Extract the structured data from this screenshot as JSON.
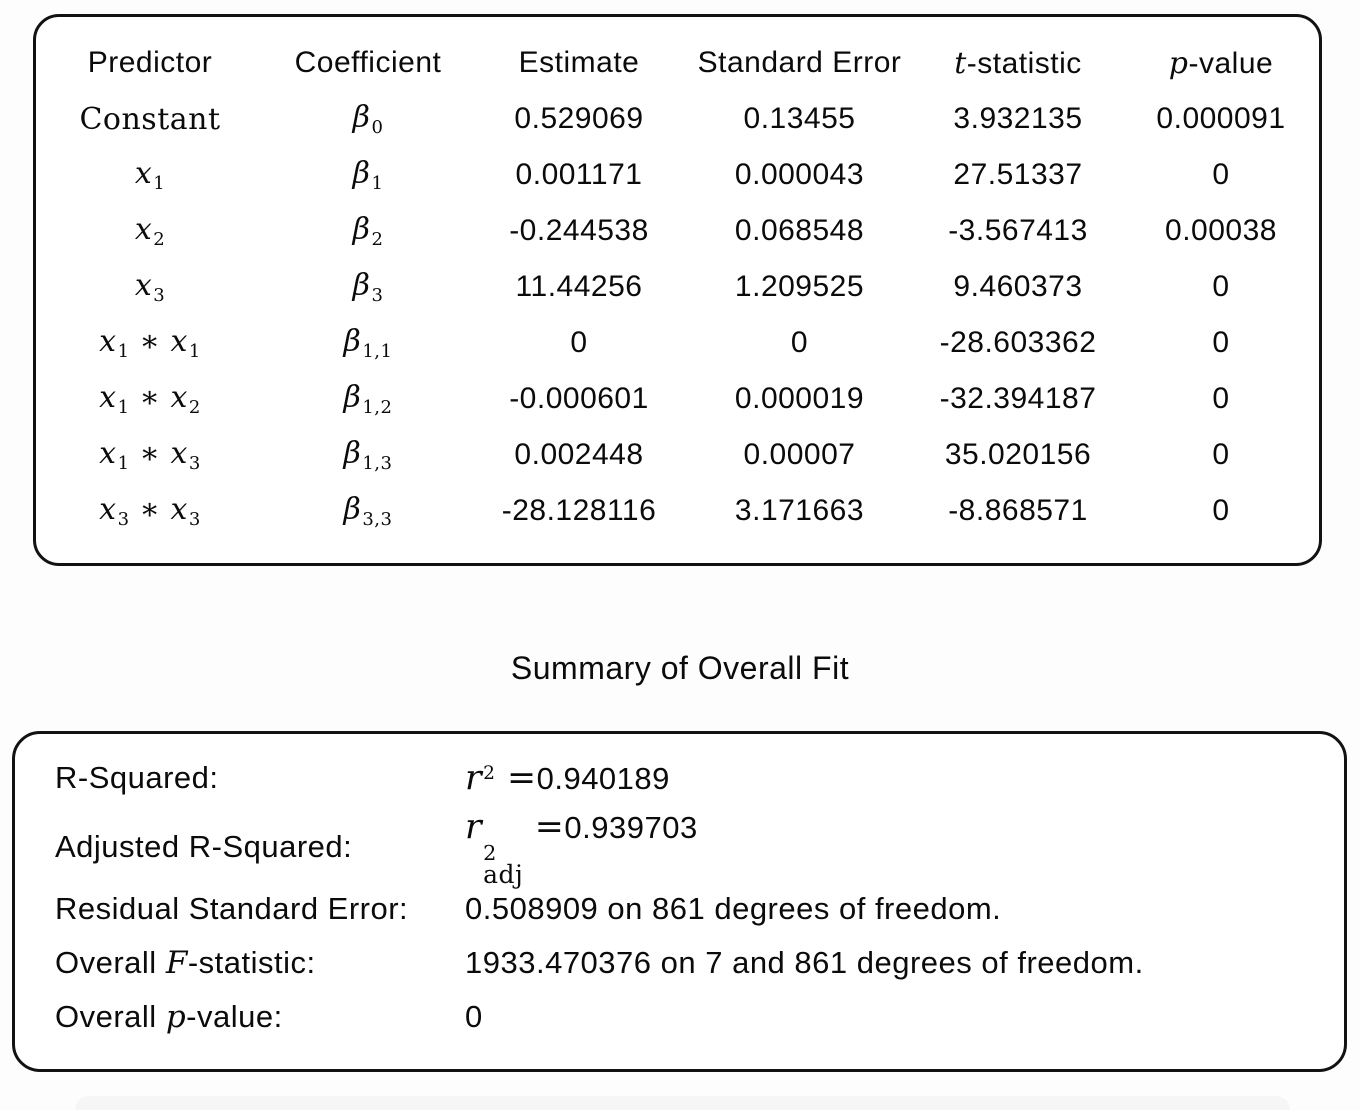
{
  "coef_table": {
    "headers": [
      [
        {
          "t": "Predictor",
          "s": "sans"
        }
      ],
      [
        {
          "t": "Coefficient",
          "s": "sans"
        }
      ],
      [
        {
          "t": "Estimate",
          "s": "sans"
        }
      ],
      [
        {
          "t": "Standard Error",
          "s": "sans"
        }
      ],
      [
        {
          "t": "t",
          "s": "it"
        },
        {
          "t": "-statistic",
          "s": "sans"
        }
      ],
      [
        {
          "t": "p",
          "s": "it"
        },
        {
          "t": "-value",
          "s": "sans"
        }
      ]
    ],
    "rows": [
      {
        "predictor": [
          {
            "t": "Constant",
            "s": "rm"
          }
        ],
        "coefficient": [
          {
            "t": "β",
            "s": "it"
          },
          {
            "t": "0",
            "s": "sub"
          }
        ],
        "estimate": "0.529069",
        "standard_error": "0.13455",
        "t_statistic": "3.932135",
        "p_value": "0.000091"
      },
      {
        "predictor": [
          {
            "t": "x",
            "s": "it"
          },
          {
            "t": "1",
            "s": "sub"
          }
        ],
        "coefficient": [
          {
            "t": "β",
            "s": "it"
          },
          {
            "t": "1",
            "s": "sub"
          }
        ],
        "estimate": "0.001171",
        "standard_error": "0.000043",
        "t_statistic": "27.51337",
        "p_value": "0"
      },
      {
        "predictor": [
          {
            "t": "x",
            "s": "it"
          },
          {
            "t": "2",
            "s": "sub"
          }
        ],
        "coefficient": [
          {
            "t": "β",
            "s": "it"
          },
          {
            "t": "2",
            "s": "sub"
          }
        ],
        "estimate": "-0.244538",
        "standard_error": "0.068548",
        "t_statistic": "-3.567413",
        "p_value": "0.00038"
      },
      {
        "predictor": [
          {
            "t": "x",
            "s": "it"
          },
          {
            "t": "3",
            "s": "sub"
          }
        ],
        "coefficient": [
          {
            "t": "β",
            "s": "it"
          },
          {
            "t": "3",
            "s": "sub"
          }
        ],
        "estimate": "11.44256",
        "standard_error": "1.209525",
        "t_statistic": "9.460373",
        "p_value": "0"
      },
      {
        "predictor": [
          {
            "t": "x",
            "s": "it"
          },
          {
            "t": "1",
            "s": "sub"
          },
          {
            "t": " ∗ ",
            "s": "rm"
          },
          {
            "t": "x",
            "s": "it"
          },
          {
            "t": "1",
            "s": "sub"
          }
        ],
        "coefficient": [
          {
            "t": "β",
            "s": "it"
          },
          {
            "t": "1,1",
            "s": "sub"
          }
        ],
        "estimate": "0",
        "standard_error": "0",
        "t_statistic": "-28.603362",
        "p_value": "0"
      },
      {
        "predictor": [
          {
            "t": "x",
            "s": "it"
          },
          {
            "t": "1",
            "s": "sub"
          },
          {
            "t": " ∗ ",
            "s": "rm"
          },
          {
            "t": "x",
            "s": "it"
          },
          {
            "t": "2",
            "s": "sub"
          }
        ],
        "coefficient": [
          {
            "t": "β",
            "s": "it"
          },
          {
            "t": "1,2",
            "s": "sub"
          }
        ],
        "estimate": "-0.000601",
        "standard_error": "0.000019",
        "t_statistic": "-32.394187",
        "p_value": "0"
      },
      {
        "predictor": [
          {
            "t": "x",
            "s": "it"
          },
          {
            "t": "1",
            "s": "sub"
          },
          {
            "t": " ∗ ",
            "s": "rm"
          },
          {
            "t": "x",
            "s": "it"
          },
          {
            "t": "3",
            "s": "sub"
          }
        ],
        "coefficient": [
          {
            "t": "β",
            "s": "it"
          },
          {
            "t": "1,3",
            "s": "sub"
          }
        ],
        "estimate": "0.002448",
        "standard_error": "0.00007",
        "t_statistic": "35.020156",
        "p_value": "0"
      },
      {
        "predictor": [
          {
            "t": "x",
            "s": "it"
          },
          {
            "t": "3",
            "s": "sub"
          },
          {
            "t": " ∗ ",
            "s": "rm"
          },
          {
            "t": "x",
            "s": "it"
          },
          {
            "t": "3",
            "s": "sub"
          }
        ],
        "coefficient": [
          {
            "t": "β",
            "s": "it"
          },
          {
            "t": "3,3",
            "s": "sub"
          }
        ],
        "estimate": "-28.128116",
        "standard_error": "3.171663",
        "t_statistic": "-8.868571",
        "p_value": "0"
      }
    ]
  },
  "summary": {
    "title": "Summary of Overall Fit",
    "rows": [
      {
        "label": [
          {
            "t": "R-Squared:",
            "s": "sans"
          }
        ],
        "value": [
          {
            "t": "r",
            "s": "it"
          },
          {
            "t": "2",
            "s": "sup"
          },
          {
            "t": " =",
            "s": "rm"
          },
          {
            "t": "0.940189",
            "s": "sans"
          }
        ]
      },
      {
        "label": [
          {
            "t": "Adjusted R-Squared:",
            "s": "sans"
          }
        ],
        "value": [
          {
            "t": "r",
            "s": "it"
          },
          {
            "sup": "2",
            "sub": "adj",
            "s": "supsub"
          },
          {
            "t": " =",
            "s": "rm"
          },
          {
            "t": "0.939703",
            "s": "sans"
          }
        ]
      },
      {
        "label": [
          {
            "t": "Residual Standard Error:",
            "s": "sans"
          }
        ],
        "value": [
          {
            "t": "0.508909 on 861 degrees of freedom.",
            "s": "sans"
          }
        ]
      },
      {
        "label": [
          {
            "t": "Overall ",
            "s": "sans"
          },
          {
            "t": "F",
            "s": "it"
          },
          {
            "t": "-statistic:",
            "s": "sans"
          }
        ],
        "value": [
          {
            "t": "1933.470376 on 7 and 861 degrees of freedom.",
            "s": "sans"
          }
        ]
      },
      {
        "label": [
          {
            "t": "Overall ",
            "s": "sans"
          },
          {
            "t": "p",
            "s": "it"
          },
          {
            "t": "-value:",
            "s": "sans"
          }
        ],
        "value": [
          {
            "t": "0",
            "s": "sans"
          }
        ]
      }
    ]
  },
  "colors": {
    "box_border": "#121212",
    "text": "#0b0b0b",
    "background": "#fdfdfd",
    "peek_box": "#f6f6f6"
  }
}
